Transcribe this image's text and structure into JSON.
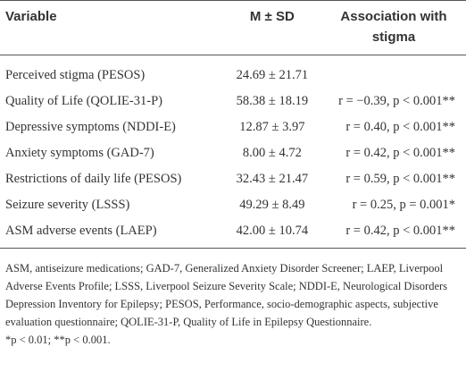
{
  "table": {
    "header": [
      "Variable",
      "M ± SD",
      "Association with stigma"
    ],
    "rows": [
      [
        "Perceived stigma (PESOS)",
        "24.69 ± 21.71",
        ""
      ],
      [
        "Quality of Life (QOLIE-31-P)",
        "58.38 ± 18.19",
        "r = −0.39, p < 0.001**"
      ],
      [
        "Depressive symptoms (NDDI-E)",
        "12.87 ± 3.97",
        "r = 0.40, p < 0.001**"
      ],
      [
        "Anxiety symptoms (GAD-7)",
        "8.00 ± 4.72",
        "r = 0.42, p < 0.001**"
      ],
      [
        "Restrictions of daily life (PESOS)",
        "32.43 ± 21.47",
        "r = 0.59, p < 0.001**"
      ],
      [
        "Seizure severity (LSSS)",
        "49.29 ± 8.49",
        "r = 0.25, p = 0.001*"
      ],
      [
        "ASM adverse events (LAEP)",
        "42.00 ± 10.74",
        "r = 0.42, p < 0.001**"
      ]
    ]
  },
  "footnote": {
    "abbreviations": "ASM, antiseizure medications; GAD-7, Generalized Anxiety Disorder Screener; LAEP, Liverpool Adverse Events Profile; LSSS, Liverpool Seizure Severity Scale; NDDI-E, Neurological Disorders Depression Inventory for Epilepsy; PESOS, Performance, socio-demographic aspects, subjective evaluation questionnaire; QOLIE-31-P, Quality of Life in Epilepsy Questionnaire.",
    "significance": "*p < 0.01; **p < 0.001."
  }
}
